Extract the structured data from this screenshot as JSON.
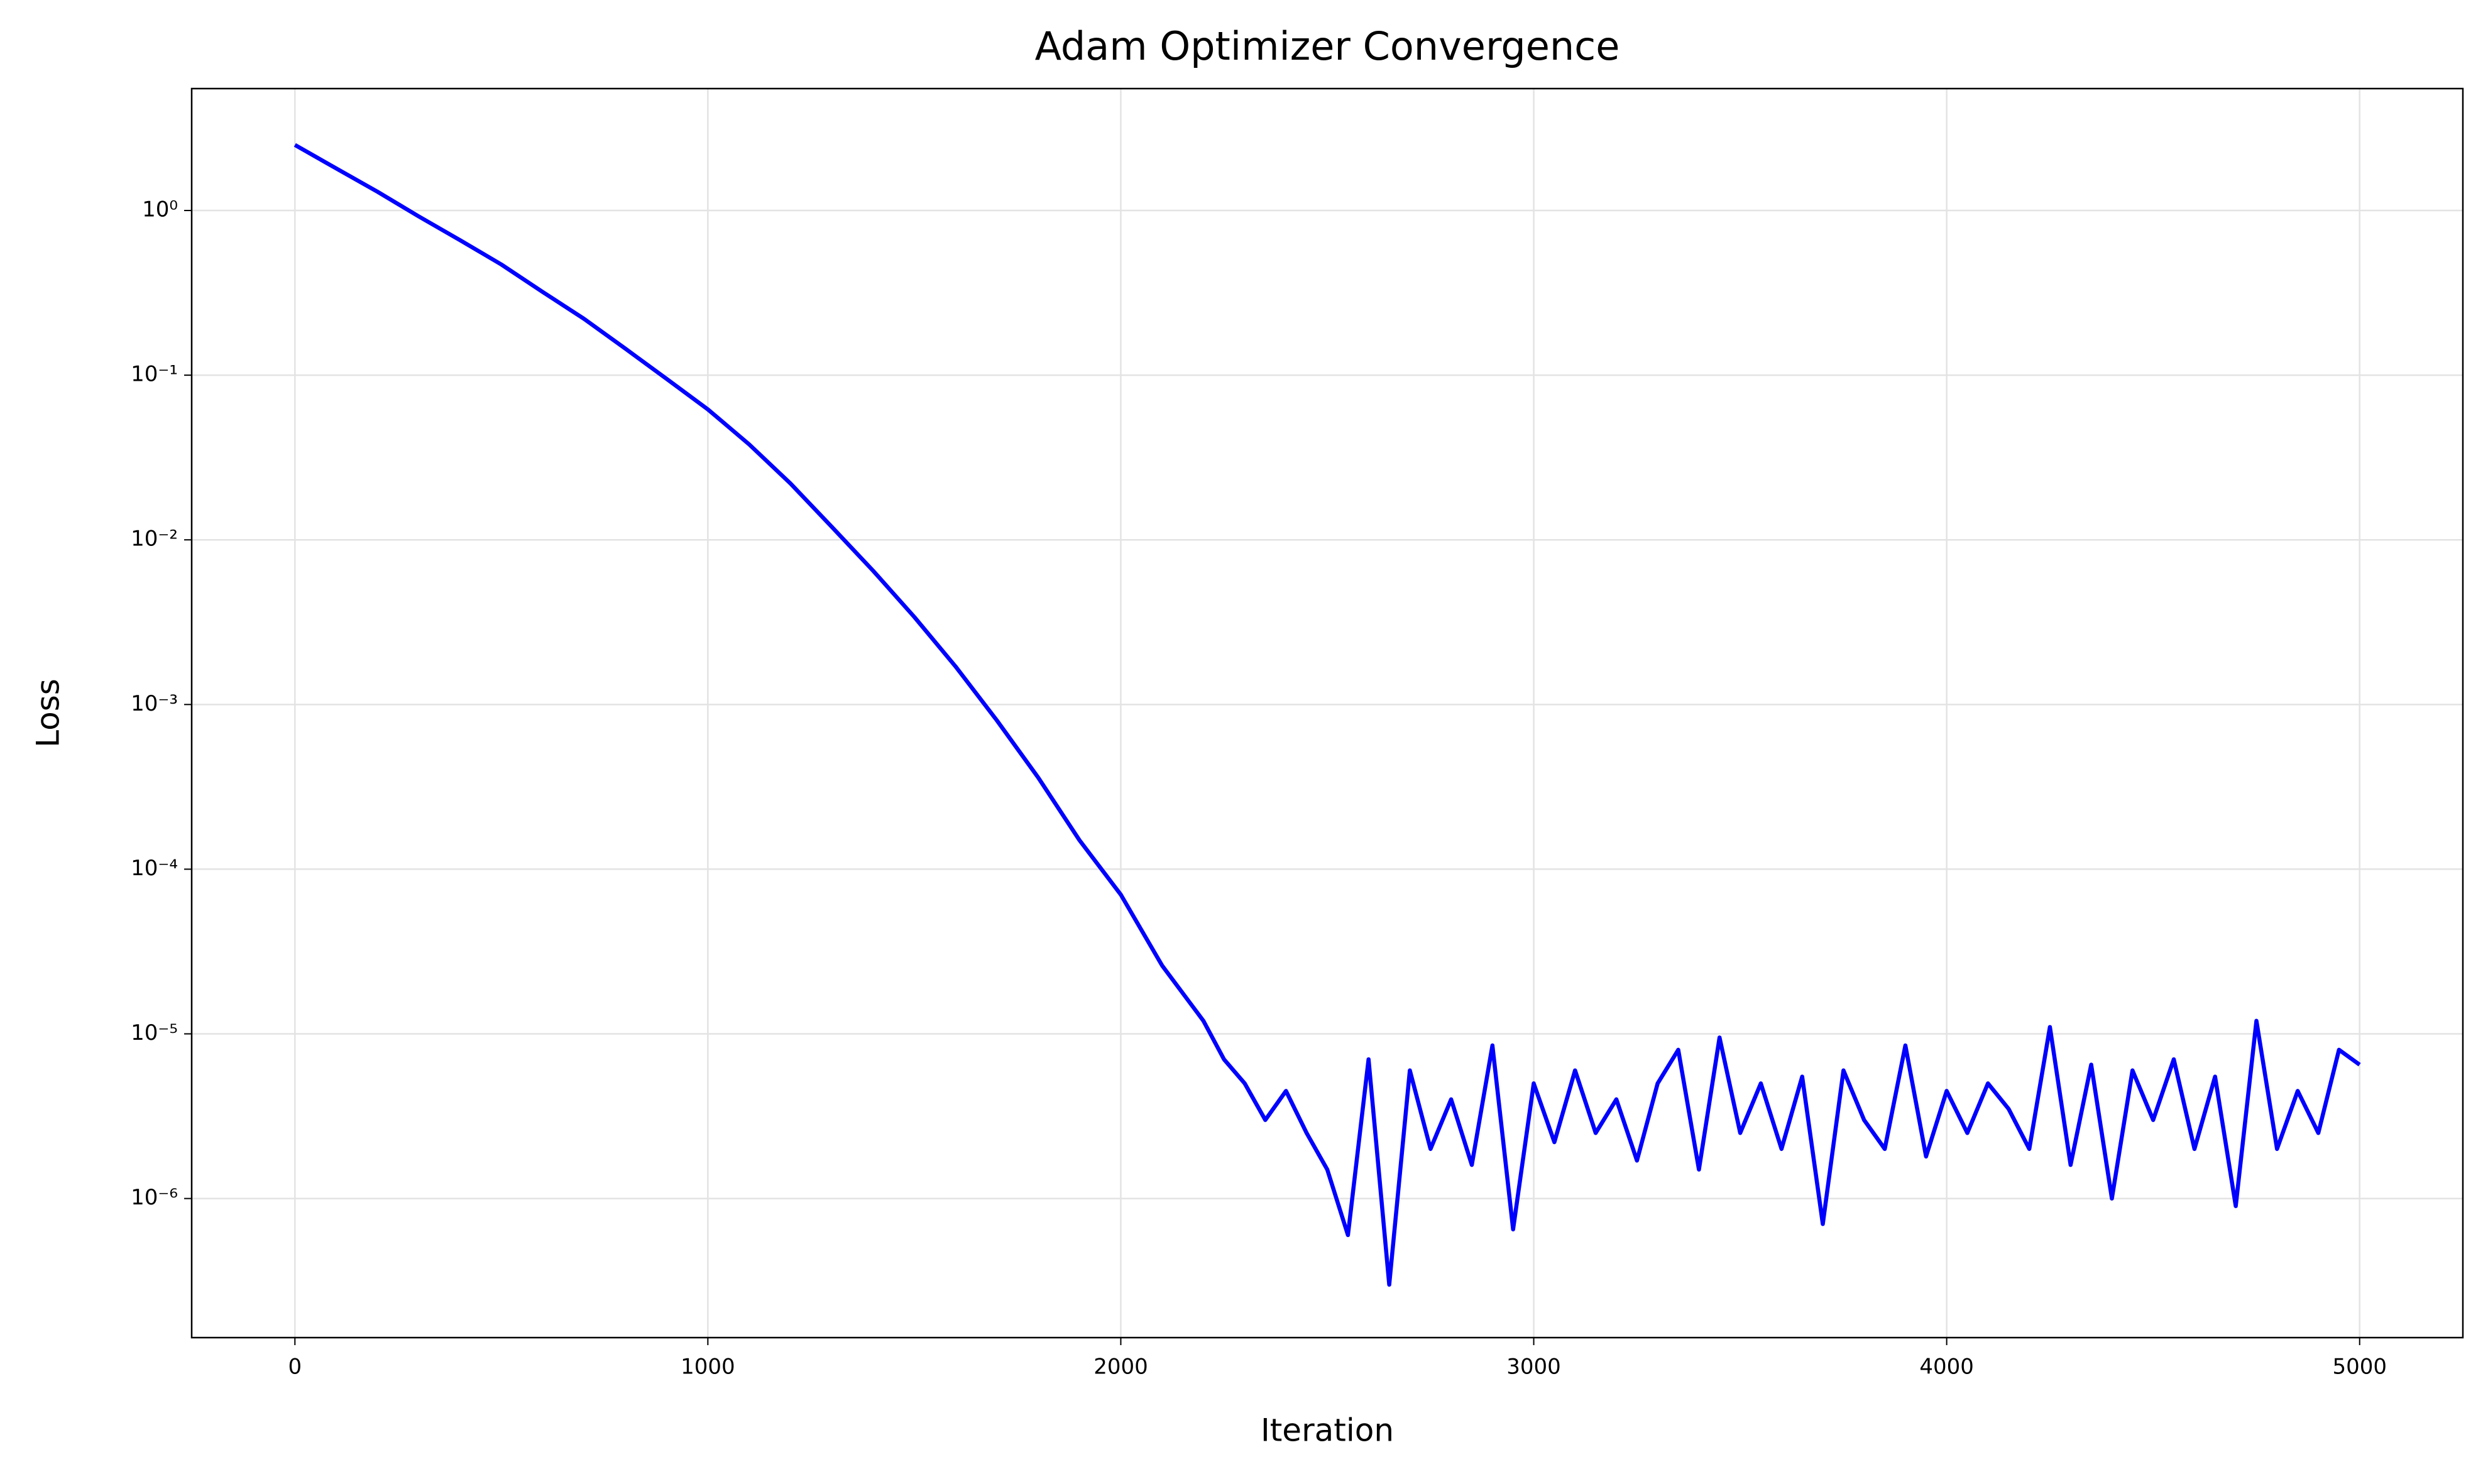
{
  "chart_data": {
    "type": "line",
    "title": "Adam Optimizer Convergence",
    "x_label": "Iteration",
    "y_label": "Loss",
    "x": [
      0,
      100,
      200,
      300,
      400,
      500,
      600,
      700,
      800,
      900,
      1000,
      1100,
      1200,
      1300,
      1400,
      1500,
      1600,
      1700,
      1800,
      1900,
      2000,
      2100,
      2200,
      2250,
      2300,
      2350,
      2400,
      2450,
      2500,
      2550,
      2600,
      2650,
      2700,
      2750,
      2800,
      2850,
      2900,
      2950,
      3000,
      3050,
      3100,
      3150,
      3200,
      3250,
      3300,
      3350,
      3400,
      3450,
      3500,
      3550,
      3600,
      3650,
      3700,
      3750,
      3800,
      3850,
      3900,
      3950,
      4000,
      4050,
      4100,
      4150,
      4200,
      4250,
      4300,
      4350,
      4400,
      4450,
      4500,
      4550,
      4600,
      4650,
      4700,
      4750,
      4800,
      4850,
      4900,
      4950,
      5000
    ],
    "values": [
      2.5,
      1.8,
      1.3,
      0.92,
      0.66,
      0.47,
      0.32,
      0.22,
      0.145,
      0.095,
      0.062,
      0.038,
      0.022,
      0.012,
      0.0065,
      0.0034,
      0.0017,
      0.0008,
      0.00036,
      0.00015,
      7e-05,
      2.6e-05,
      1.2e-05,
      7e-06,
      5e-06,
      3e-06,
      4.5e-06,
      2.5e-06,
      1.5e-06,
      6e-07,
      7e-06,
      3e-07,
      6e-06,
      2e-06,
      4e-06,
      1.6e-06,
      8.5e-06,
      6.5e-07,
      5e-06,
      2.2e-06,
      6e-06,
      2.5e-06,
      4e-06,
      1.7e-06,
      5e-06,
      8e-06,
      1.5e-06,
      9.5e-06,
      2.5e-06,
      5e-06,
      2e-06,
      5.5e-06,
      7e-07,
      6e-06,
      3e-06,
      2e-06,
      8.5e-06,
      1.8e-06,
      4.5e-06,
      2.5e-06,
      5e-06,
      3.5e-06,
      2e-06,
      1.1e-05,
      1.6e-06,
      6.5e-06,
      1e-06,
      6e-06,
      3e-06,
      7e-06,
      2e-06,
      5.5e-06,
      9e-07,
      1.2e-05,
      2e-06,
      4.5e-06,
      2.5e-06,
      8e-06,
      6.5e-06
    ],
    "color": "#0000ff",
    "xlim": [
      -250,
      5250
    ],
    "xticks": [
      0,
      1000,
      2000,
      3000,
      4000,
      5000
    ],
    "ylim": [
      1.43e-07,
      5.5
    ],
    "yscale": "log",
    "yticks": [
      {
        "value": 1,
        "label": "10⁰"
      },
      {
        "value": 0.1,
        "label": "10⁻¹"
      },
      {
        "value": 0.01,
        "label": "10⁻²"
      },
      {
        "value": 0.001,
        "label": "10⁻³"
      },
      {
        "value": 0.0001,
        "label": "10⁻⁴"
      },
      {
        "value": 1e-05,
        "label": "10⁻⁵"
      },
      {
        "value": 1e-06,
        "label": "10⁻⁶"
      }
    ],
    "grid": true
  }
}
